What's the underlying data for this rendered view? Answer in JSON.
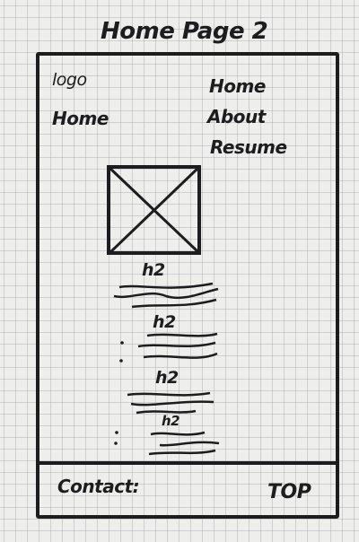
{
  "sketch": {
    "title": "Home Page 2",
    "header": {
      "logo": "logo",
      "left_link": "Home",
      "nav_items": [
        "Home",
        "About",
        "Resume"
      ]
    },
    "content": {
      "image_placeholder_icon": "crossed-box-image-placeholder",
      "headings": [
        "h2",
        "h2",
        "h2",
        "h2"
      ]
    },
    "footer": {
      "contact_label": "Contact:",
      "top_link": "TOP"
    }
  }
}
